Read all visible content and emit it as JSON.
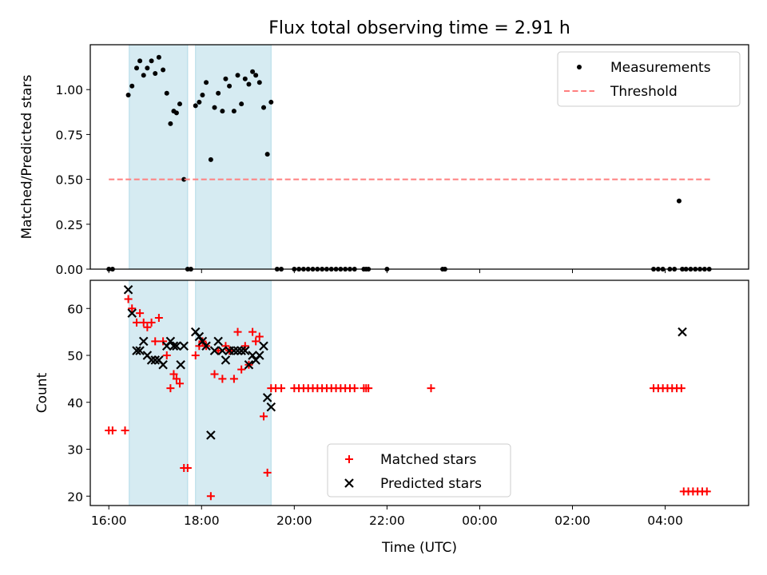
{
  "figure": {
    "title": "Flux total observing time = 2.91 h"
  },
  "chart_data": [
    {
      "type": "scatter",
      "title": "Flux total observing time = 2.91 h",
      "xlabel": "",
      "ylabel": "Matched/Predicted stars",
      "xlim": [
        15.6,
        29.8
      ],
      "ylim": [
        0,
        1.25
      ],
      "yticks": [
        0.0,
        0.25,
        0.5,
        0.75,
        1.0
      ],
      "ytick_labels": [
        "0.00",
        "0.25",
        "0.50",
        "0.75",
        "1.00"
      ],
      "x_unit": "hours since 00:00 of first day (UTC)",
      "shaded_spans": [
        [
          16.44,
          17.7
        ],
        [
          17.87,
          19.5
        ]
      ],
      "legend": {
        "placement": "upper right",
        "entries": [
          "Measurements",
          "Threshold"
        ]
      },
      "series": [
        {
          "name": "Measurements",
          "marker": "dot",
          "color": "#000000",
          "x": [
            16.0,
            16.08,
            16.42,
            16.5,
            16.6,
            16.67,
            16.75,
            16.83,
            16.92,
            17.0,
            17.08,
            17.17,
            17.25,
            17.33,
            17.4,
            17.46,
            17.53,
            17.62,
            17.7,
            17.77,
            17.87,
            17.95,
            18.02,
            18.1,
            18.2,
            18.28,
            18.36,
            18.45,
            18.52,
            18.6,
            18.7,
            18.78,
            18.86,
            18.94,
            19.02,
            19.1,
            19.17,
            19.25,
            19.34,
            19.42,
            19.5,
            19.63,
            19.72,
            20.0,
            20.1,
            20.2,
            20.3,
            20.4,
            20.5,
            20.6,
            20.7,
            20.8,
            20.9,
            21.0,
            21.1,
            21.2,
            21.3,
            21.5,
            21.55,
            21.6,
            22.0,
            23.2,
            23.25,
            27.75,
            27.85,
            27.95,
            28.1,
            28.2,
            28.3,
            28.37,
            28.45,
            28.55,
            28.65,
            28.75,
            28.85,
            28.95
          ],
          "y": [
            0,
            0,
            0.97,
            1.02,
            1.12,
            1.16,
            1.08,
            1.12,
            1.16,
            1.09,
            1.18,
            1.11,
            0.98,
            0.81,
            0.88,
            0.87,
            0.92,
            0.5,
            0,
            0,
            0.91,
            0.93,
            0.97,
            1.04,
            0.61,
            0.9,
            0.98,
            0.88,
            1.06,
            1.02,
            0.88,
            1.08,
            0.92,
            1.06,
            1.03,
            1.1,
            1.08,
            1.04,
            0.9,
            0.64,
            0.93,
            0,
            0,
            0,
            0,
            0,
            0,
            0,
            0,
            0,
            0,
            0,
            0,
            0,
            0,
            0,
            0,
            0,
            0,
            0,
            0,
            0,
            0,
            0,
            0,
            0,
            0,
            0,
            0.38,
            0,
            0,
            0,
            0,
            0,
            0,
            0
          ]
        },
        {
          "name": "Threshold",
          "style": "dashed",
          "color": "#ff7f7f",
          "x": [
            16.0,
            29.0
          ],
          "y": [
            0.5,
            0.5
          ]
        }
      ]
    },
    {
      "type": "scatter",
      "title": "",
      "xlabel": "Time (UTC)",
      "ylabel": "Count",
      "xlim": [
        15.6,
        29.8
      ],
      "ylim": [
        18,
        66
      ],
      "yticks": [
        20,
        30,
        40,
        50,
        60
      ],
      "ytick_labels": [
        "20",
        "30",
        "40",
        "50",
        "60"
      ],
      "xticks": [
        16,
        18,
        20,
        22,
        24,
        26,
        28
      ],
      "xtick_labels": [
        "16:00",
        "18:00",
        "20:00",
        "22:00",
        "00:00",
        "02:00",
        "04:00"
      ],
      "x_unit": "hours since 00:00 of first day (UTC)",
      "shaded_spans": [
        [
          16.44,
          17.7
        ],
        [
          17.87,
          19.5
        ]
      ],
      "legend": {
        "placement": "lower center",
        "entries": [
          "Matched stars",
          "Predicted stars"
        ]
      },
      "series": [
        {
          "name": "Matched stars",
          "marker": "plus",
          "color": "#ff0000",
          "x": [
            16.0,
            16.08,
            16.35,
            16.42,
            16.5,
            16.6,
            16.67,
            16.75,
            16.83,
            16.92,
            17.0,
            17.08,
            17.17,
            17.25,
            17.33,
            17.4,
            17.46,
            17.53,
            17.62,
            17.7,
            17.87,
            17.95,
            18.02,
            18.1,
            18.2,
            18.28,
            18.36,
            18.45,
            18.52,
            18.6,
            18.7,
            18.78,
            18.86,
            18.94,
            19.02,
            19.1,
            19.17,
            19.25,
            19.34,
            19.42,
            19.5,
            19.6,
            19.72,
            20.0,
            20.1,
            20.2,
            20.3,
            20.4,
            20.5,
            20.6,
            20.7,
            20.8,
            20.9,
            21.0,
            21.1,
            21.2,
            21.3,
            21.5,
            21.55,
            21.6,
            22.95,
            27.75,
            27.85,
            27.95,
            28.05,
            28.15,
            28.25,
            28.35,
            28.4,
            28.5,
            28.6,
            28.7,
            28.8,
            28.9
          ],
          "y": [
            34,
            34,
            34,
            62,
            60,
            57,
            59,
            57,
            56,
            57,
            53,
            58,
            53,
            50,
            43,
            46,
            45,
            44,
            26,
            26,
            50,
            52,
            53,
            52,
            20,
            46,
            51,
            45,
            52,
            51,
            45,
            55,
            47,
            52,
            48,
            55,
            53,
            54,
            37,
            25,
            43,
            43,
            43,
            43,
            43,
            43,
            43,
            43,
            43,
            43,
            43,
            43,
            43,
            43,
            43,
            43,
            43,
            43,
            43,
            43,
            43,
            43,
            43,
            43,
            43,
            43,
            43,
            43,
            21,
            21,
            21,
            21,
            21,
            21
          ]
        },
        {
          "name": "Predicted stars",
          "marker": "x",
          "color": "#000000",
          "x": [
            16.42,
            16.5,
            16.6,
            16.67,
            16.75,
            16.83,
            16.92,
            17.0,
            17.08,
            17.17,
            17.25,
            17.33,
            17.4,
            17.46,
            17.55,
            17.62,
            17.87,
            17.95,
            18.02,
            18.1,
            18.2,
            18.28,
            18.36,
            18.45,
            18.52,
            18.6,
            18.7,
            18.78,
            18.86,
            18.94,
            19.02,
            19.1,
            19.17,
            19.25,
            19.34,
            19.42,
            19.5,
            28.37
          ],
          "y": [
            64,
            59,
            51,
            51,
            53,
            50,
            49,
            49,
            49,
            48,
            52,
            53,
            52,
            52,
            48,
            52,
            55,
            54,
            53,
            52,
            33,
            51,
            53,
            51,
            49,
            51,
            51,
            51,
            51,
            51,
            48,
            50,
            49,
            50,
            52,
            41,
            39,
            55
          ]
        }
      ]
    }
  ]
}
